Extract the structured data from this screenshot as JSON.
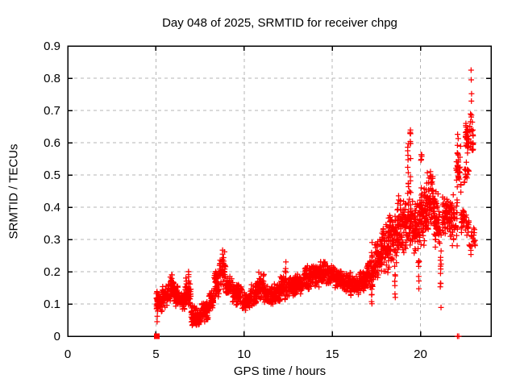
{
  "chart_data": {
    "type": "scatter",
    "title": "Day 048 of 2025, SRMTID for receiver chpg",
    "xlabel": "GPS time / hours",
    "ylabel": "SRMTID / TECUs",
    "xlim": [
      0,
      24
    ],
    "ylim": [
      0,
      0.9
    ],
    "xticks": [
      {
        "v": 0,
        "label": "0"
      },
      {
        "v": 5,
        "label": "5"
      },
      {
        "v": 10,
        "label": "10"
      },
      {
        "v": 15,
        "label": "15"
      },
      {
        "v": 20,
        "label": "20"
      }
    ],
    "yticks": [
      {
        "v": 0.0,
        "label": "0"
      },
      {
        "v": 0.1,
        "label": "0.1"
      },
      {
        "v": 0.2,
        "label": "0.2"
      },
      {
        "v": 0.3,
        "label": "0.3"
      },
      {
        "v": 0.4,
        "label": "0.4"
      },
      {
        "v": 0.5,
        "label": "0.5"
      },
      {
        "v": 0.6,
        "label": "0.6"
      },
      {
        "v": 0.7,
        "label": "0.7"
      },
      {
        "v": 0.8,
        "label": "0.8"
      },
      {
        "v": 0.9,
        "label": "0.9"
      }
    ],
    "grid": {
      "show": true,
      "style": "dashed",
      "color": "#b4b4b4"
    },
    "frame_color": "#000000",
    "marker": {
      "type": "plus",
      "color": "#ff0000",
      "size": 7
    },
    "seed": 48,
    "time_range_hours": [
      5.0,
      23.1
    ],
    "bands": [
      [
        5.0,
        5.35,
        0.07,
        0.145,
        55
      ],
      [
        5.35,
        5.7,
        0.08,
        0.17,
        50
      ],
      [
        5.7,
        6.05,
        0.09,
        0.2,
        50
      ],
      [
        6.05,
        6.35,
        0.09,
        0.16,
        50
      ],
      [
        6.35,
        6.65,
        0.08,
        0.14,
        45
      ],
      [
        6.65,
        7.0,
        0.09,
        0.185,
        50
      ],
      [
        7.0,
        7.55,
        0.025,
        0.1,
        85
      ],
      [
        7.55,
        8.0,
        0.04,
        0.115,
        65
      ],
      [
        8.0,
        8.3,
        0.075,
        0.15,
        45
      ],
      [
        8.3,
        8.6,
        0.11,
        0.215,
        50
      ],
      [
        8.6,
        8.95,
        0.14,
        0.27,
        55
      ],
      [
        8.95,
        9.3,
        0.12,
        0.19,
        50
      ],
      [
        9.3,
        9.9,
        0.095,
        0.17,
        75
      ],
      [
        9.9,
        10.35,
        0.075,
        0.14,
        65
      ],
      [
        10.35,
        10.75,
        0.09,
        0.165,
        55
      ],
      [
        10.75,
        11.15,
        0.11,
        0.2,
        60
      ],
      [
        11.15,
        11.65,
        0.095,
        0.16,
        70
      ],
      [
        11.65,
        12.05,
        0.1,
        0.165,
        60
      ],
      [
        12.05,
        12.45,
        0.11,
        0.2,
        60
      ],
      [
        12.45,
        12.9,
        0.115,
        0.185,
        65
      ],
      [
        12.9,
        13.35,
        0.13,
        0.2,
        65
      ],
      [
        13.35,
        13.8,
        0.14,
        0.22,
        65
      ],
      [
        13.8,
        14.25,
        0.15,
        0.23,
        65
      ],
      [
        14.25,
        14.7,
        0.155,
        0.24,
        65
      ],
      [
        14.7,
        15.15,
        0.155,
        0.225,
        65
      ],
      [
        15.15,
        15.6,
        0.145,
        0.21,
        65
      ],
      [
        15.6,
        16.05,
        0.135,
        0.2,
        65
      ],
      [
        16.05,
        16.5,
        0.12,
        0.19,
        65
      ],
      [
        16.5,
        16.95,
        0.14,
        0.215,
        65
      ],
      [
        16.95,
        17.35,
        0.14,
        0.25,
        55
      ],
      [
        17.35,
        17.8,
        0.17,
        0.3,
        65
      ],
      [
        17.8,
        18.25,
        0.19,
        0.35,
        65
      ],
      [
        18.25,
        18.7,
        0.21,
        0.4,
        70
      ],
      [
        18.7,
        19.15,
        0.24,
        0.44,
        70
      ],
      [
        19.15,
        19.55,
        0.26,
        0.48,
        65
      ],
      [
        19.55,
        19.95,
        0.24,
        0.44,
        65
      ],
      [
        19.95,
        20.35,
        0.27,
        0.49,
        70
      ],
      [
        20.35,
        20.75,
        0.3,
        0.52,
        70
      ],
      [
        20.75,
        21.1,
        0.27,
        0.46,
        60
      ],
      [
        21.25,
        21.7,
        0.29,
        0.46,
        65
      ],
      [
        21.7,
        22.1,
        0.27,
        0.45,
        45
      ],
      [
        22.0,
        22.3,
        0.42,
        0.63,
        30
      ],
      [
        22.3,
        22.75,
        0.31,
        0.4,
        35
      ],
      [
        22.45,
        22.75,
        0.46,
        0.55,
        15
      ],
      [
        22.55,
        23.0,
        0.55,
        0.7,
        55
      ],
      [
        22.75,
        23.1,
        0.25,
        0.34,
        22
      ]
    ],
    "spikes": [
      [
        6.85,
        0.15,
        0.205,
        7
      ],
      [
        12.35,
        0.17,
        0.235,
        6
      ],
      [
        17.25,
        0.1,
        0.3,
        14
      ],
      [
        18.2,
        0.3,
        0.42,
        6
      ],
      [
        18.55,
        0.12,
        0.22,
        8
      ],
      [
        19.3,
        0.44,
        0.6,
        10
      ],
      [
        19.42,
        0.46,
        0.64,
        10
      ],
      [
        19.9,
        0.14,
        0.24,
        7
      ],
      [
        20.05,
        0.5,
        0.575,
        5
      ],
      [
        21.15,
        0.08,
        0.35,
        13
      ],
      [
        22.12,
        0.5,
        0.63,
        8
      ]
    ],
    "outliers": [
      [
        5.07,
        0.045
      ],
      [
        5.08,
        0.062
      ],
      [
        22.87,
        0.825
      ],
      [
        22.88,
        0.795
      ],
      [
        22.9,
        0.752
      ],
      [
        22.89,
        0.729
      ],
      [
        22.1,
        0.0
      ],
      [
        22.17,
        0.0
      ]
    ],
    "square_markers": [
      [
        5.05,
        0.0
      ]
    ]
  }
}
